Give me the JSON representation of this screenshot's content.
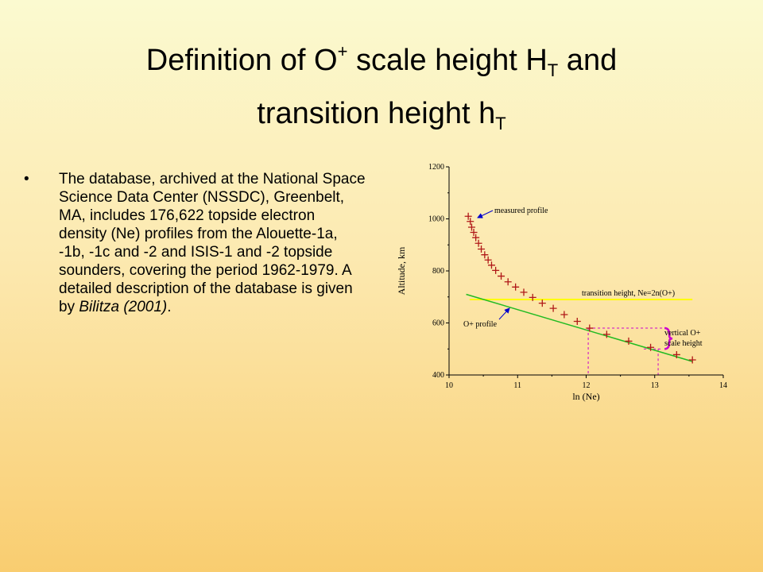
{
  "slide": {
    "title_line1_pre": "Definition of O",
    "title_line1_sup": "+",
    "title_line1_mid": " scale height H",
    "title_line1_sub": "T",
    "title_line1_post": " and",
    "title_line2_pre": "transition height h",
    "title_line2_sub": "T",
    "bullet_char": "•",
    "bullet_text": "The database, archived at the National Space Science Data Center (NSSDC), Greenbelt, MA, includes 176,622 topside electron density (Ne) profiles from the Alouette-1a, -1b, -1c and -2 and ISIS-1 and -2 topside sounders, covering the period 1962-1979.  A detailed description of the database is given by ",
    "bullet_citation": "Bilitza (2001)",
    "bullet_end": "."
  },
  "chart_data": {
    "type": "scatter",
    "xlabel": "ln (Ne)",
    "ylabel": "Altitude, km",
    "xlim": [
      10,
      14
    ],
    "ylim": [
      400,
      1200
    ],
    "x_ticks": [
      "10",
      "11",
      "12",
      "13",
      "14"
    ],
    "y_ticks": [
      "400",
      "600",
      "800",
      "1000",
      "1200"
    ],
    "series": [
      {
        "name": "measured profile",
        "marker": "plus",
        "color": "#b01818",
        "points": [
          [
            10.28,
            1010
          ],
          [
            10.31,
            990
          ],
          [
            10.33,
            968
          ],
          [
            10.36,
            948
          ],
          [
            10.39,
            928
          ],
          [
            10.43,
            906
          ],
          [
            10.47,
            884
          ],
          [
            10.52,
            862
          ],
          [
            10.57,
            842
          ],
          [
            10.62,
            822
          ],
          [
            10.68,
            802
          ],
          [
            10.76,
            780
          ],
          [
            10.86,
            758
          ],
          [
            10.97,
            738
          ],
          [
            11.09,
            718
          ],
          [
            11.22,
            698
          ],
          [
            11.36,
            676
          ],
          [
            11.52,
            656
          ],
          [
            11.68,
            632
          ],
          [
            11.87,
            606
          ],
          [
            12.05,
            580
          ],
          [
            12.3,
            556
          ],
          [
            12.62,
            530
          ],
          [
            12.94,
            506
          ],
          [
            13.32,
            478
          ],
          [
            13.55,
            458
          ]
        ]
      },
      {
        "name": "O+ profile",
        "type": "line",
        "color": "#22bb22",
        "points": [
          [
            10.25,
            710
          ],
          [
            13.55,
            452
          ]
        ]
      }
    ],
    "annotations": {
      "measured_profile": "measured profile",
      "transition_height": "transition height,  Ne=2n(O+)",
      "o_plus_profile": "O+ profile",
      "scale_height_line1": "vertical O+",
      "scale_height_line2": "scale height",
      "transition_altitude": 690,
      "scale_height_top": 580,
      "scale_height_bottom": 500,
      "scale_ref_x1": 12.03,
      "scale_ref_x2": 13.05
    },
    "colors": {
      "transition_line": "#ffff00",
      "scale_guides": "#cc00cc",
      "arrows": "#0000cc",
      "axis": "#000000"
    }
  }
}
